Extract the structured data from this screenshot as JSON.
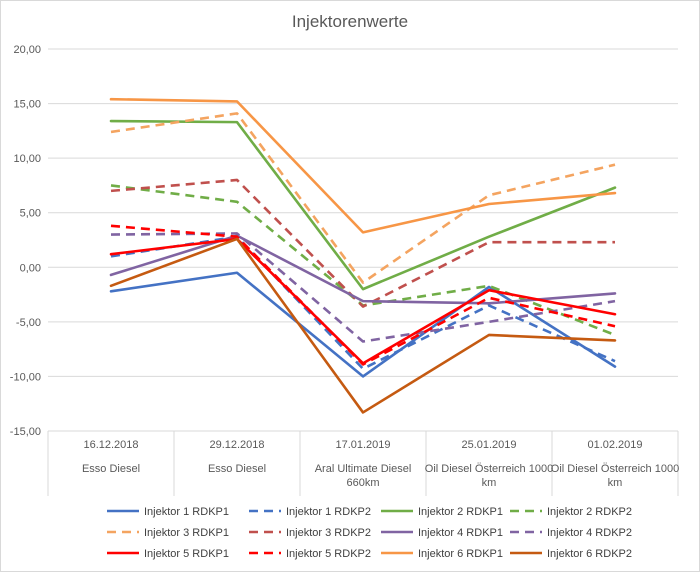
{
  "chart_data": {
    "type": "line",
    "title": "Injektorenwerte",
    "categories": [
      [
        "16.12.2018",
        "Esso Diesel"
      ],
      [
        "29.12.2018",
        "Esso Diesel"
      ],
      [
        "17.01.2019",
        "Aral Ultimate Diesel",
        "660km"
      ],
      [
        "25.01.2019",
        "Oil Diesel Österreich 1000",
        "km"
      ],
      [
        "01.02.2019",
        "Oil Diesel Österreich 1000",
        "km"
      ]
    ],
    "ylim": [
      -15,
      20
    ],
    "yticks": [
      -15,
      -10,
      -5,
      0,
      5,
      10,
      15,
      20
    ],
    "ytick_labels": [
      "-15,00",
      "-10,00",
      "-5,00",
      "0,00",
      "5,00",
      "10,00",
      "15,00",
      "20,00"
    ],
    "grid": true,
    "legend_position": "bottom",
    "series": [
      {
        "name": "Injektor 1 RDKP1",
        "color": "#4472c4",
        "dashed": false,
        "values": [
          -2.2,
          -0.5,
          -10.0,
          -1.8,
          -9.1
        ]
      },
      {
        "name": "Injektor 1 RDKP2",
        "color": "#4472c4",
        "dashed": true,
        "values": [
          1.0,
          2.8,
          -9.3,
          -3.5,
          -8.6
        ]
      },
      {
        "name": "Injektor 2 RDKP1",
        "color": "#70ad47",
        "dashed": false,
        "values": [
          13.4,
          13.3,
          -2.0,
          2.8,
          7.3
        ]
      },
      {
        "name": "Injektor 2 RDKP2",
        "color": "#70ad47",
        "dashed": true,
        "values": [
          7.5,
          6.0,
          -3.5,
          -1.7,
          -6.2
        ]
      },
      {
        "name": "Injektor 3 RDKP1",
        "color": "#f4a460",
        "dashed": true,
        "values": [
          12.4,
          14.1,
          -1.4,
          6.6,
          9.4
        ]
      },
      {
        "name": "Injektor 3 RDKP2",
        "color": "#c0504d",
        "dashed": true,
        "values": [
          7.0,
          8.0,
          -3.6,
          2.3,
          2.3
        ]
      },
      {
        "name": "Injektor 4 RDKP1",
        "color": "#8064a2",
        "dashed": false,
        "values": [
          -0.7,
          2.9,
          -3.1,
          -3.3,
          -2.4
        ]
      },
      {
        "name": "Injektor 4 RDKP2",
        "color": "#8064a2",
        "dashed": true,
        "values": [
          3.0,
          3.1,
          -6.8,
          -5.0,
          -3.1
        ]
      },
      {
        "name": "Injektor 5 RDKP1",
        "color": "#ff0000",
        "dashed": false,
        "values": [
          1.2,
          2.6,
          -8.8,
          -2.1,
          -4.3
        ]
      },
      {
        "name": "Injektor 5 RDKP2",
        "color": "#ff0000",
        "dashed": true,
        "values": [
          3.8,
          2.8,
          -8.9,
          -2.8,
          -5.4
        ]
      },
      {
        "name": "Injektor 6 RDKP1",
        "color": "#f79646",
        "dashed": false,
        "values": [
          15.4,
          15.2,
          3.2,
          5.8,
          6.8
        ]
      },
      {
        "name": "Injektor 6 RDKP2",
        "color": "#c55a11",
        "dashed": false,
        "values": [
          -1.7,
          2.6,
          -13.3,
          -6.2,
          -6.7
        ]
      }
    ]
  }
}
